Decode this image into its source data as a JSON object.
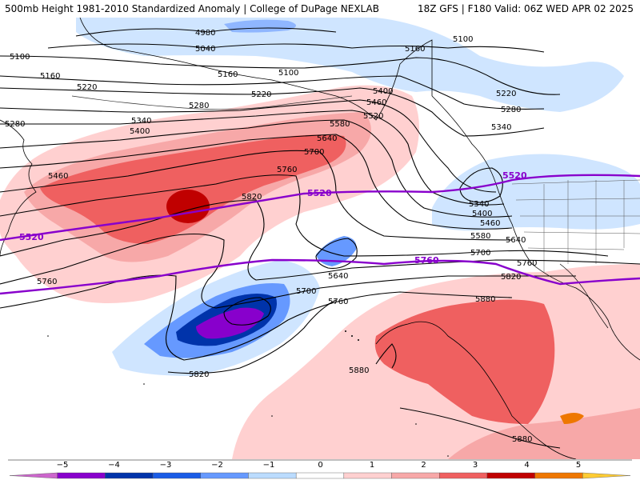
{
  "header": {
    "title_left": "500mb Height 1981-2010 Standardized Anomaly | College of DuPage NEXLAB",
    "title_right": "18Z GFS | F180 Valid: 06Z WED APR 02 2025"
  },
  "contour_labels": [
    {
      "text": "4980"
    },
    {
      "text": "5040"
    },
    {
      "text": "5100"
    },
    {
      "text": "5100"
    },
    {
      "text": "5100"
    },
    {
      "text": "5160"
    },
    {
      "text": "5160"
    },
    {
      "text": "5160"
    },
    {
      "text": "5220"
    },
    {
      "text": "5220"
    },
    {
      "text": "5220"
    },
    {
      "text": "5280"
    },
    {
      "text": "5280"
    },
    {
      "text": "5280"
    },
    {
      "text": "5340"
    },
    {
      "text": "5340"
    },
    {
      "text": "5340"
    },
    {
      "text": "5400"
    },
    {
      "text": "5400"
    },
    {
      "text": "5400"
    },
    {
      "text": "5460"
    },
    {
      "text": "5460"
    },
    {
      "text": "5460"
    },
    {
      "text": "5520"
    },
    {
      "text": "5580"
    },
    {
      "text": "5580"
    },
    {
      "text": "5640"
    },
    {
      "text": "5640"
    },
    {
      "text": "5640"
    },
    {
      "text": "5700"
    },
    {
      "text": "5700"
    },
    {
      "text": "5700"
    },
    {
      "text": "5760"
    },
    {
      "text": "5760"
    },
    {
      "text": "5760"
    },
    {
      "text": "5760"
    },
    {
      "text": "5820"
    },
    {
      "text": "5820"
    },
    {
      "text": "5820"
    },
    {
      "text": "5880"
    },
    {
      "text": "5880"
    },
    {
      "text": "5880"
    }
  ],
  "purple_labels": [
    {
      "text": "5520"
    },
    {
      "text": "5520"
    },
    {
      "text": "5520"
    },
    {
      "text": "5760"
    }
  ],
  "colorbar": {
    "ticks": [
      "−5",
      "−4",
      "−3",
      "−2",
      "−1",
      "0",
      "1",
      "2",
      "3",
      "4",
      "5"
    ],
    "colors": [
      "#cc66cc",
      "#8800cc",
      "#0033aa",
      "#1a5ce6",
      "#6699ff",
      "#bbdcff",
      "#ffffff",
      "#ffd0d0",
      "#f7a8a8",
      "#ef6060",
      "#c00000",
      "#ee7700",
      "#ffcc33"
    ]
  }
}
